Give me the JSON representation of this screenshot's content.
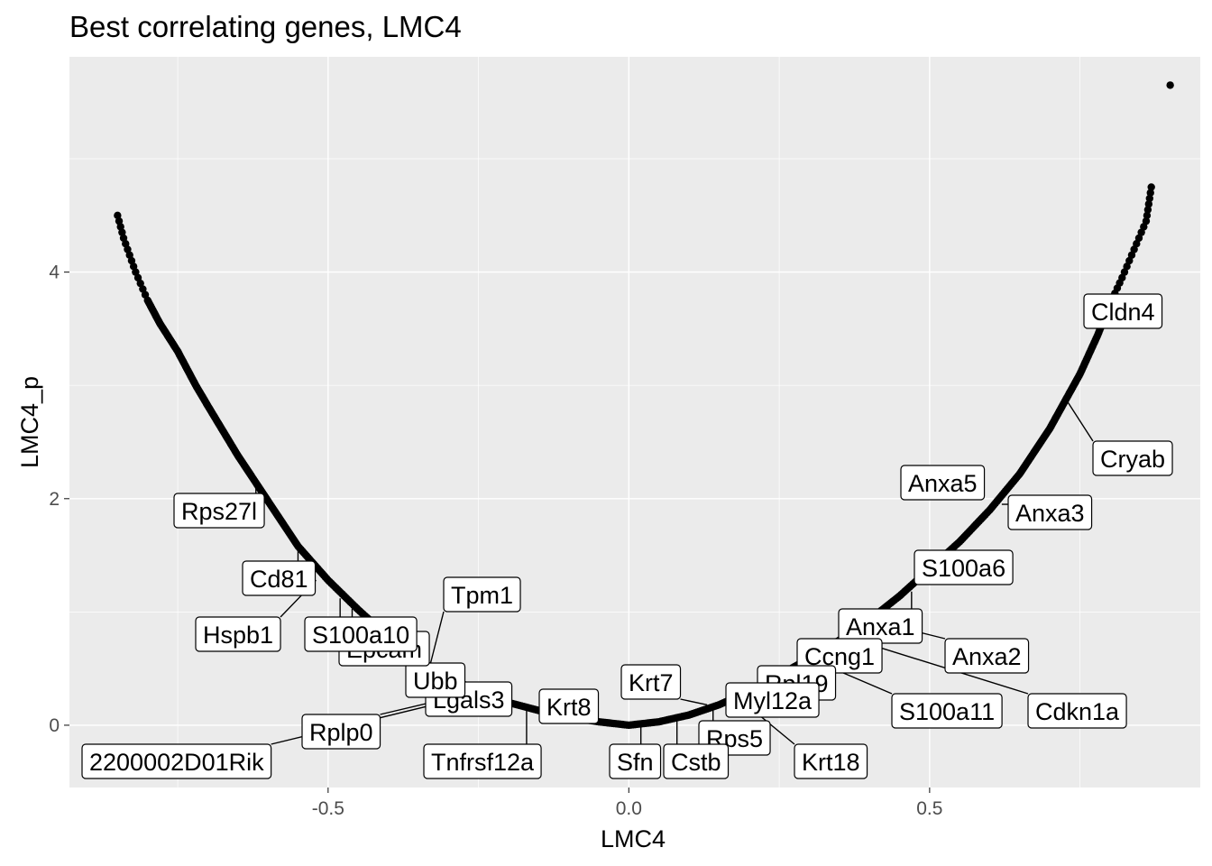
{
  "chart_data": {
    "type": "scatter",
    "title": "Best correlating genes, LMC4",
    "xlabel": "LMC4",
    "ylabel": "LMC4_p",
    "xlim": [
      -0.93,
      0.95
    ],
    "ylim": [
      -0.55,
      5.9
    ],
    "x_ticks": [
      -0.5,
      0.0,
      0.5
    ],
    "x_tick_labels": [
      "-0.5",
      "0.0",
      "0.5"
    ],
    "y_ticks": [
      0,
      2,
      4
    ],
    "y_tick_labels": [
      "0",
      "2",
      "4"
    ],
    "grid": true,
    "panel_background": "#ebebeb",
    "point_color": "#000000",
    "curve_points": [
      {
        "x": -0.85,
        "y": 4.5
      },
      {
        "x": -0.84,
        "y": 4.3
      },
      {
        "x": -0.82,
        "y": 4.0
      },
      {
        "x": -0.8,
        "y": 3.75
      },
      {
        "x": -0.78,
        "y": 3.55
      },
      {
        "x": -0.75,
        "y": 3.3
      },
      {
        "x": -0.72,
        "y": 3.0
      },
      {
        "x": -0.7,
        "y": 2.82
      },
      {
        "x": -0.65,
        "y": 2.38
      },
      {
        "x": -0.6,
        "y": 1.98
      },
      {
        "x": -0.55,
        "y": 1.58
      },
      {
        "x": -0.5,
        "y": 1.28
      },
      {
        "x": -0.45,
        "y": 1.02
      },
      {
        "x": -0.4,
        "y": 0.78
      },
      {
        "x": -0.35,
        "y": 0.58
      },
      {
        "x": -0.3,
        "y": 0.42
      },
      {
        "x": -0.25,
        "y": 0.3
      },
      {
        "x": -0.2,
        "y": 0.2
      },
      {
        "x": -0.15,
        "y": 0.13
      },
      {
        "x": -0.1,
        "y": 0.07
      },
      {
        "x": -0.05,
        "y": 0.03
      },
      {
        "x": 0.0,
        "y": 0.0
      },
      {
        "x": 0.05,
        "y": 0.03
      },
      {
        "x": 0.1,
        "y": 0.09
      },
      {
        "x": 0.15,
        "y": 0.18
      },
      {
        "x": 0.2,
        "y": 0.3
      },
      {
        "x": 0.25,
        "y": 0.44
      },
      {
        "x": 0.3,
        "y": 0.59
      },
      {
        "x": 0.35,
        "y": 0.75
      },
      {
        "x": 0.4,
        "y": 0.93
      },
      {
        "x": 0.45,
        "y": 1.14
      },
      {
        "x": 0.5,
        "y": 1.38
      },
      {
        "x": 0.55,
        "y": 1.62
      },
      {
        "x": 0.6,
        "y": 1.9
      },
      {
        "x": 0.65,
        "y": 2.22
      },
      {
        "x": 0.7,
        "y": 2.62
      },
      {
        "x": 0.75,
        "y": 3.1
      },
      {
        "x": 0.78,
        "y": 3.45
      },
      {
        "x": 0.8,
        "y": 3.72
      },
      {
        "x": 0.82,
        "y": 3.95
      },
      {
        "x": 0.84,
        "y": 4.2
      },
      {
        "x": 0.86,
        "y": 4.45
      },
      {
        "x": 0.87,
        "y": 4.8
      },
      {
        "x": 0.9,
        "y": 5.65
      }
    ],
    "labeled_points": [
      {
        "gene": "Cldn4",
        "x": 0.81,
        "y": 3.72
      },
      {
        "gene": "Cryab",
        "x": 0.73,
        "y": 2.85
      },
      {
        "gene": "Anxa5",
        "x": 0.48,
        "y": 2.3
      },
      {
        "gene": "Anxa3",
        "x": 0.62,
        "y": 1.95
      },
      {
        "gene": "S100a6",
        "x": 0.48,
        "y": 1.22
      },
      {
        "gene": "Anxa1",
        "x": 0.47,
        "y": 1.18
      },
      {
        "gene": "Anxa2",
        "x": 0.4,
        "y": 0.93
      },
      {
        "gene": "Ccng1",
        "x": 0.33,
        "y": 0.7
      },
      {
        "gene": "Cdkn1a",
        "x": 0.36,
        "y": 0.78
      },
      {
        "gene": "S100a11",
        "x": 0.3,
        "y": 0.59
      },
      {
        "gene": "Rpl19",
        "x": 0.25,
        "y": 0.45
      },
      {
        "gene": "Myl12a",
        "x": 0.18,
        "y": 0.27
      },
      {
        "gene": "Krt7",
        "x": 0.13,
        "y": 0.18
      },
      {
        "gene": "Rps5",
        "x": 0.14,
        "y": 0.19
      },
      {
        "gene": "Krt18",
        "x": 0.18,
        "y": 0.25
      },
      {
        "gene": "Cstb",
        "x": 0.08,
        "y": 0.06
      },
      {
        "gene": "Sfn",
        "x": 0.02,
        "y": 0.01
      },
      {
        "gene": "Krt8",
        "x": -0.07,
        "y": 0.1
      },
      {
        "gene": "Tnfrsf12a",
        "x": -0.17,
        "y": 0.17
      },
      {
        "gene": "Tpm1",
        "x": -0.33,
        "y": 0.54
      },
      {
        "gene": "Lgals3",
        "x": -0.33,
        "y": 0.52
      },
      {
        "gene": "Ubb",
        "x": -0.36,
        "y": 0.62
      },
      {
        "gene": "Epcam",
        "x": -0.46,
        "y": 1.03
      },
      {
        "gene": "S100a10",
        "x": -0.48,
        "y": 1.12
      },
      {
        "gene": "Hspb1",
        "x": -0.52,
        "y": 1.28
      },
      {
        "gene": "Cd81",
        "x": -0.55,
        "y": 1.55
      },
      {
        "gene": "Rps27l",
        "x": -0.62,
        "y": 2.1
      },
      {
        "gene": "Rplp0",
        "x": -0.25,
        "y": 0.3
      },
      {
        "gene": "2200002D01Rik",
        "x": -0.24,
        "y": 0.29
      }
    ]
  }
}
